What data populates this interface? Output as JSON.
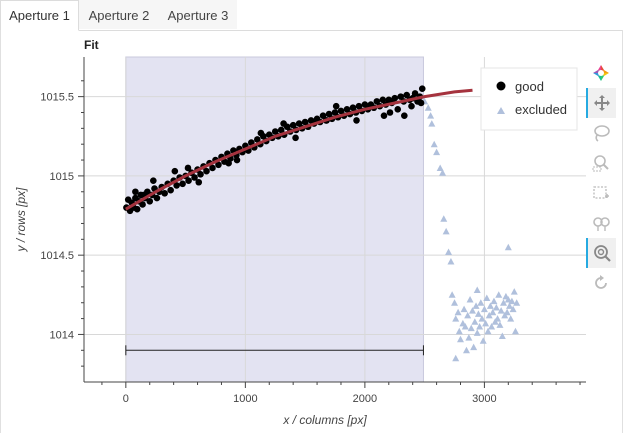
{
  "tabs": [
    {
      "label": "Aperture 1",
      "active": true
    },
    {
      "label": "Aperture 2",
      "active": false
    },
    {
      "label": "Aperture 3",
      "active": false
    }
  ],
  "toolbar": {
    "tools": [
      {
        "icon": "bokeh-logo-icon",
        "active": false
      },
      {
        "icon": "pan-icon",
        "active": true
      },
      {
        "icon": "lasso-select-icon",
        "active": false
      },
      {
        "icon": "box-zoom-icon",
        "active": false
      },
      {
        "icon": "box-select-icon",
        "active": false
      },
      {
        "icon": "hover-icon",
        "active": false
      },
      {
        "icon": "wheel-zoom-icon",
        "active": true
      },
      {
        "icon": "reset-icon",
        "active": false
      }
    ]
  },
  "colors": {
    "good": "#000000",
    "excluded": "#b0c0dc",
    "fit": "#a5333e",
    "region": "#e3e3f2"
  },
  "chart_data": {
    "type": "scatter",
    "title": "Fit",
    "xlabel": "x / columns [px]",
    "ylabel": "y / rows [px]",
    "xlim": [
      -350,
      3850
    ],
    "ylim": [
      1013.7,
      1015.75
    ],
    "xticks": [
      0,
      1000,
      2000,
      3000
    ],
    "yticks": [
      1014,
      1014.5,
      1015,
      1015.5
    ],
    "grid": true,
    "legend_position": "top-right",
    "legend": [
      "good",
      "excluded"
    ],
    "selected_region": {
      "x": [
        0,
        2490
      ]
    },
    "range_bar": {
      "x": [
        0,
        2490
      ],
      "y": 1013.9
    },
    "fit": {
      "x": [
        0,
        250,
        500,
        750,
        1000,
        1250,
        1500,
        1750,
        2000,
        2250,
        2500,
        2750,
        2900
      ],
      "y": [
        1014.79,
        1014.9,
        1015.0,
        1015.09,
        1015.17,
        1015.25,
        1015.31,
        1015.37,
        1015.42,
        1015.46,
        1015.5,
        1015.53,
        1015.54
      ]
    },
    "series": [
      {
        "name": "good",
        "x": [
          5,
          20,
          35,
          50,
          65,
          80,
          95,
          110,
          125,
          140,
          160,
          180,
          200,
          220,
          240,
          260,
          280,
          300,
          325,
          350,
          375,
          400,
          425,
          450,
          475,
          500,
          525,
          550,
          575,
          600,
          625,
          650,
          675,
          700,
          725,
          750,
          775,
          800,
          825,
          850,
          875,
          900,
          925,
          950,
          975,
          1000,
          1025,
          1050,
          1075,
          1100,
          1125,
          1150,
          1175,
          1200,
          1225,
          1250,
          1275,
          1300,
          1325,
          1350,
          1375,
          1400,
          1425,
          1450,
          1475,
          1500,
          1525,
          1550,
          1575,
          1600,
          1625,
          1650,
          1675,
          1700,
          1725,
          1750,
          1775,
          1800,
          1825,
          1850,
          1875,
          1900,
          1925,
          1950,
          1975,
          2000,
          2025,
          2050,
          2075,
          2100,
          2125,
          2150,
          2175,
          2200,
          2225,
          2250,
          2275,
          2300,
          2325,
          2350,
          2375,
          2400,
          2420,
          2440,
          2460,
          2480,
          80,
          230,
          410,
          610,
          860,
          1130,
          1420,
          1680,
          1930,
          2160,
          2330,
          2390,
          2470,
          150,
          520,
          930,
          1320,
          1760,
          2210
        ],
        "y": [
          1014.8,
          1014.85,
          1014.78,
          1014.83,
          1014.8,
          1014.86,
          1014.79,
          1014.84,
          1014.88,
          1014.82,
          1014.86,
          1014.9,
          1014.84,
          1014.88,
          1014.92,
          1014.86,
          1014.9,
          1014.93,
          1014.89,
          1014.95,
          1014.91,
          1014.97,
          1014.94,
          1014.99,
          1014.95,
          1015.0,
          1014.97,
          1015.02,
          1014.99,
          1015.04,
          1015.01,
          1015.06,
          1015.03,
          1015.08,
          1015.05,
          1015.1,
          1015.07,
          1015.12,
          1015.09,
          1015.14,
          1015.11,
          1015.16,
          1015.13,
          1015.17,
          1015.15,
          1015.19,
          1015.16,
          1015.21,
          1015.18,
          1015.23,
          1015.2,
          1015.25,
          1015.22,
          1015.26,
          1015.24,
          1015.28,
          1015.25,
          1015.29,
          1015.26,
          1015.31,
          1015.28,
          1015.32,
          1015.29,
          1015.33,
          1015.3,
          1015.34,
          1015.31,
          1015.35,
          1015.33,
          1015.36,
          1015.34,
          1015.38,
          1015.35,
          1015.39,
          1015.36,
          1015.4,
          1015.37,
          1015.41,
          1015.38,
          1015.42,
          1015.39,
          1015.43,
          1015.4,
          1015.44,
          1015.41,
          1015.45,
          1015.42,
          1015.45,
          1015.43,
          1015.47,
          1015.44,
          1015.48,
          1015.45,
          1015.48,
          1015.46,
          1015.49,
          1015.42,
          1015.5,
          1015.47,
          1015.51,
          1015.48,
          1015.49,
          1015.52,
          1015.47,
          1015.5,
          1015.55,
          1014.9,
          1014.97,
          1015.03,
          1014.96,
          1015.08,
          1015.27,
          1015.24,
          1015.35,
          1015.35,
          1015.38,
          1015.38,
          1015.44,
          1015.46,
          1014.88,
          1015.05,
          1015.1,
          1015.33,
          1015.44,
          1015.4
        ]
      },
      {
        "name": "excluded",
        "x": [
          2500,
          2530,
          2550,
          2560,
          2580,
          2600,
          2630,
          2650,
          2660,
          2680,
          2700,
          2720,
          2730,
          2750,
          2760,
          2780,
          2790,
          2800,
          2820,
          2830,
          2840,
          2860,
          2870,
          2880,
          2890,
          2900,
          2910,
          2920,
          2930,
          2940,
          2950,
          2960,
          2970,
          2980,
          2990,
          3000,
          3010,
          3020,
          3030,
          3040,
          3050,
          3060,
          3070,
          3080,
          3090,
          3100,
          3110,
          3120,
          3130,
          3140,
          3150,
          3160,
          3170,
          3180,
          3190,
          3200,
          3210,
          3220,
          3230,
          3240,
          3250,
          3260,
          3270,
          3200,
          2760,
          2850,
          2940
        ],
        "y": [
          1015.47,
          1015.43,
          1015.38,
          1015.33,
          1015.2,
          1015.15,
          1015.05,
          1015.02,
          1014.73,
          1014.65,
          1014.52,
          1014.46,
          1014.25,
          1014.2,
          1014.1,
          1014.14,
          1014.02,
          1013.97,
          1014.07,
          1014.16,
          1014.05,
          1014.12,
          1013.98,
          1014.22,
          1014.04,
          1014.15,
          1013.92,
          1014.08,
          1014.18,
          1014.01,
          1014.13,
          1014.05,
          1014.2,
          1014.1,
          1013.96,
          1014.16,
          1014.07,
          1014.23,
          1014.02,
          1014.12,
          1014.18,
          1014.05,
          1014.14,
          1014.21,
          1014.08,
          1014.17,
          1014.1,
          1014.25,
          1014.06,
          1014.15,
          1013.99,
          1014.2,
          1014.12,
          1014.24,
          1014.14,
          1014.22,
          1014.18,
          1014.1,
          1014.21,
          1014.16,
          1014.27,
          1014.02,
          1014.2,
          1014.55,
          1013.85,
          1013.9,
          1014.28
        ]
      }
    ]
  }
}
